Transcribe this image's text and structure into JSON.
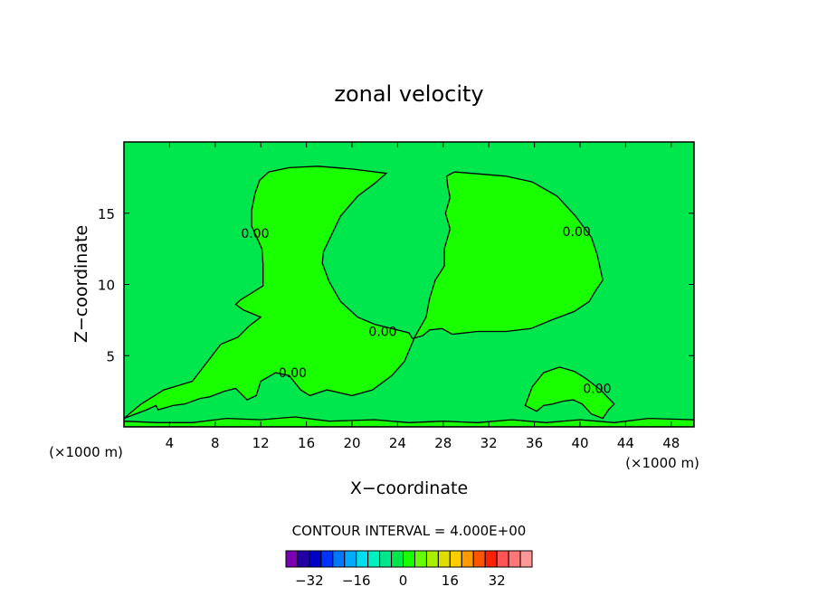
{
  "chart_data": {
    "type": "contour",
    "title": "zonal velocity",
    "xlabel": "X−coordinate",
    "ylabel": "Z−coordinate",
    "x_unit": "(×1000 m)",
    "y_unit": "(×1000 m)",
    "xlim": [
      0,
      50
    ],
    "ylim": [
      0,
      20
    ],
    "x_ticks": [
      4,
      8,
      12,
      16,
      20,
      24,
      28,
      32,
      36,
      40,
      44,
      48
    ],
    "x_tick_labels": [
      "4",
      "8",
      "12",
      "16",
      "20",
      "24",
      "28",
      "32",
      "36",
      "40",
      "44",
      "48"
    ],
    "y_ticks": [
      5,
      10,
      15
    ],
    "y_tick_labels": [
      "5",
      "10",
      "15"
    ],
    "contour_interval_text": "CONTOUR INTERVAL = 4.000E+00",
    "contour_label": "0.00",
    "background_level_color": "#00e64d",
    "positive_region_color": "#1aff00",
    "colorbar": {
      "colors": [
        "#7a00b3",
        "#2200a3",
        "#0000c8",
        "#0033ff",
        "#0077ff",
        "#00aaff",
        "#00ddee",
        "#00f0c0",
        "#00e68a",
        "#00e64d",
        "#1aff00",
        "#66ff00",
        "#aaee00",
        "#dddd00",
        "#ffcc00",
        "#ff9900",
        "#ff5500",
        "#ff2200",
        "#ff5555",
        "#ff7777",
        "#ff9999"
      ],
      "tick_values": [
        -32,
        -16,
        0,
        16,
        32
      ],
      "tick_labels": [
        "−32",
        "−16",
        "0",
        "16",
        "32"
      ]
    },
    "regions": [
      {
        "name": "left-positive-region",
        "level": "0.00",
        "points": [
          [
            0,
            0.6
          ],
          [
            1.5,
            1.6
          ],
          [
            3.5,
            2.6
          ],
          [
            6,
            3.2
          ],
          [
            8.5,
            5.8
          ],
          [
            10,
            6.3
          ],
          [
            11,
            7.1
          ],
          [
            12,
            7.7
          ],
          [
            10.5,
            8.2
          ],
          [
            9.8,
            8.6
          ],
          [
            10.2,
            8.9
          ],
          [
            11,
            9.3
          ],
          [
            12.2,
            9.9
          ],
          [
            12.2,
            11.4
          ],
          [
            12.1,
            12.5
          ],
          [
            11.2,
            14.1
          ],
          [
            11.2,
            15.2
          ],
          [
            11.5,
            16.4
          ],
          [
            11.9,
            17.3
          ],
          [
            12.7,
            17.9
          ],
          [
            14.5,
            18.2
          ],
          [
            17,
            18.3
          ],
          [
            20,
            18.1
          ],
          [
            23,
            17.8
          ],
          [
            22,
            17.1
          ],
          [
            20.5,
            16.2
          ],
          [
            19,
            14.8
          ],
          [
            17.5,
            12.3
          ],
          [
            17.4,
            11.5
          ],
          [
            18,
            10.2
          ],
          [
            19,
            8.8
          ],
          [
            20.5,
            7.7
          ],
          [
            22,
            7.2
          ],
          [
            24,
            6.8
          ],
          [
            25,
            6.6
          ],
          [
            25.3,
            6.2
          ],
          [
            26.2,
            6.4
          ],
          [
            26.8,
            6.8
          ],
          [
            27.9,
            6.9
          ],
          [
            28.8,
            6.5
          ],
          [
            31,
            6.7
          ],
          [
            33.5,
            6.7
          ],
          [
            35.7,
            6.9
          ],
          [
            37.5,
            7.5
          ],
          [
            39.5,
            8.1
          ],
          [
            40.8,
            8.8
          ],
          [
            41.4,
            9.6
          ],
          [
            42,
            10.3
          ],
          [
            41.5,
            12.1
          ],
          [
            41,
            13.3
          ],
          [
            39.6,
            14.8
          ],
          [
            38,
            16.2
          ],
          [
            35.8,
            17.2
          ],
          [
            33.5,
            17.6
          ],
          [
            29,
            17.9
          ],
          [
            28.3,
            17.6
          ],
          [
            28.4,
            16.9
          ],
          [
            28.6,
            16.1
          ],
          [
            28.2,
            15.0
          ],
          [
            28.6,
            13.9
          ],
          [
            28.1,
            12.5
          ],
          [
            28.1,
            11.3
          ],
          [
            27.3,
            10.3
          ],
          [
            26.8,
            9.0
          ],
          [
            26.5,
            7.7
          ],
          [
            25.5,
            6.3
          ],
          [
            24.6,
            4.6
          ],
          [
            23.5,
            3.6
          ],
          [
            21.8,
            2.6
          ],
          [
            20,
            2.2
          ],
          [
            17.8,
            2.6
          ],
          [
            16.3,
            2.2
          ],
          [
            15.5,
            2.6
          ],
          [
            14.5,
            3.6
          ],
          [
            13.3,
            3.8
          ],
          [
            12.0,
            3.2
          ],
          [
            11.6,
            2.2
          ],
          [
            10.8,
            1.9
          ],
          [
            9.8,
            2.7
          ],
          [
            8.8,
            2.5
          ],
          [
            7.5,
            2.1
          ],
          [
            6.7,
            2.0
          ],
          [
            5.3,
            1.6
          ],
          [
            4.3,
            1.5
          ],
          [
            3.0,
            1.2
          ],
          [
            2.8,
            1.5
          ],
          [
            2.0,
            1.2
          ],
          [
            0,
            0.6
          ]
        ]
      },
      {
        "name": "right-positive-region",
        "level": "0.00",
        "points": [
          [
            35.2,
            1.5
          ],
          [
            35.8,
            2.8
          ],
          [
            36.8,
            3.8
          ],
          [
            38.2,
            4.2
          ],
          [
            39.5,
            3.9
          ],
          [
            40.5,
            3.4
          ],
          [
            41.8,
            2.6
          ],
          [
            43,
            1.6
          ],
          [
            42.5,
            1.2
          ],
          [
            42.0,
            0.6
          ],
          [
            41.0,
            0.9
          ],
          [
            40.2,
            1.6
          ],
          [
            39.4,
            1.9
          ],
          [
            38.5,
            1.8
          ],
          [
            37.6,
            1.6
          ],
          [
            36.8,
            1.5
          ],
          [
            36.2,
            1.1
          ],
          [
            35.2,
            1.5
          ]
        ]
      },
      {
        "name": "bottom-positive-band",
        "level": "0.00",
        "points": [
          [
            0,
            0
          ],
          [
            0,
            0.4
          ],
          [
            3,
            0.3
          ],
          [
            6,
            0.3
          ],
          [
            9,
            0.6
          ],
          [
            12,
            0.5
          ],
          [
            15,
            0.7
          ],
          [
            18,
            0.4
          ],
          [
            22,
            0.5
          ],
          [
            25,
            0.3
          ],
          [
            28,
            0.4
          ],
          [
            31,
            0.3
          ],
          [
            34,
            0.5
          ],
          [
            37,
            0.3
          ],
          [
            40,
            0.5
          ],
          [
            43,
            0.3
          ],
          [
            46,
            0.6
          ],
          [
            50,
            0.5
          ],
          [
            50,
            0
          ]
        ]
      }
    ],
    "contour_label_positions": [
      [
        11.5,
        13.6
      ],
      [
        22.7,
        6.7
      ],
      [
        14.8,
        3.8
      ],
      [
        39.7,
        13.7
      ],
      [
        41.5,
        2.7
      ]
    ]
  }
}
